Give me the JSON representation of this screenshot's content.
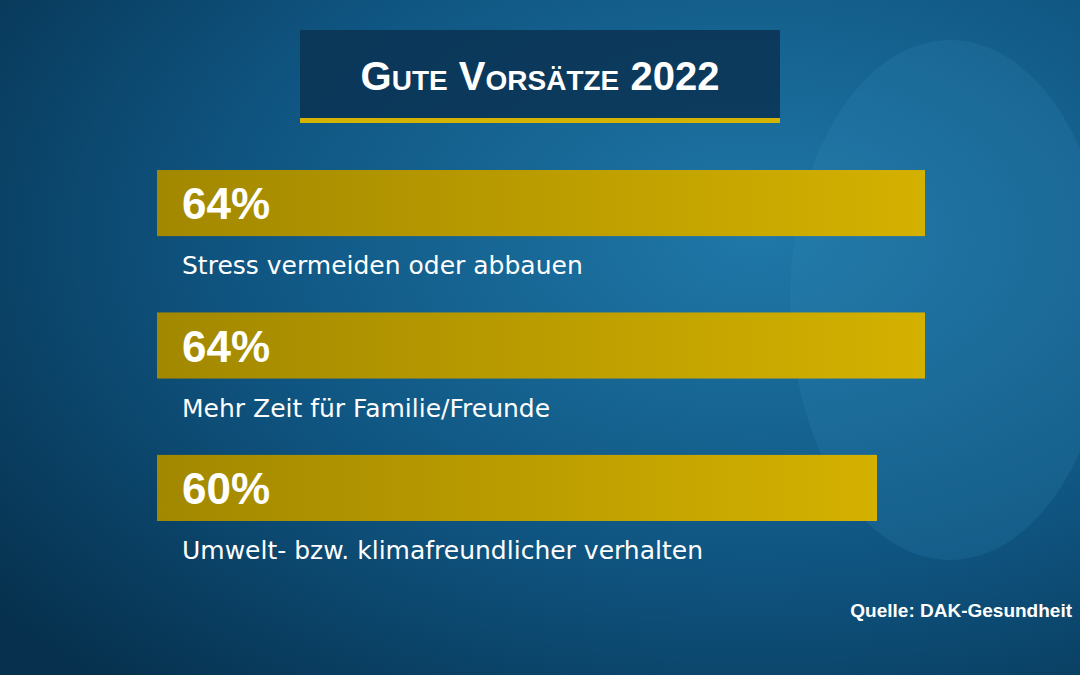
{
  "chart_data": {
    "type": "bar",
    "orientation": "horizontal",
    "title": "Gute Vorsätze 2022",
    "categories": [
      "Stress vermeiden oder abbauen",
      "Mehr Zeit für Familie/Freunde",
      "Umwelt- bzw. klimafreundlicher verhalten"
    ],
    "values": [
      64,
      64,
      60
    ],
    "value_labels": [
      "64%",
      "64%",
      "60%"
    ],
    "data_labels": true,
    "color": "#c9a800",
    "tick_labels": false,
    "grid": false,
    "source": "Quelle: DAK-Gesundheit"
  }
}
